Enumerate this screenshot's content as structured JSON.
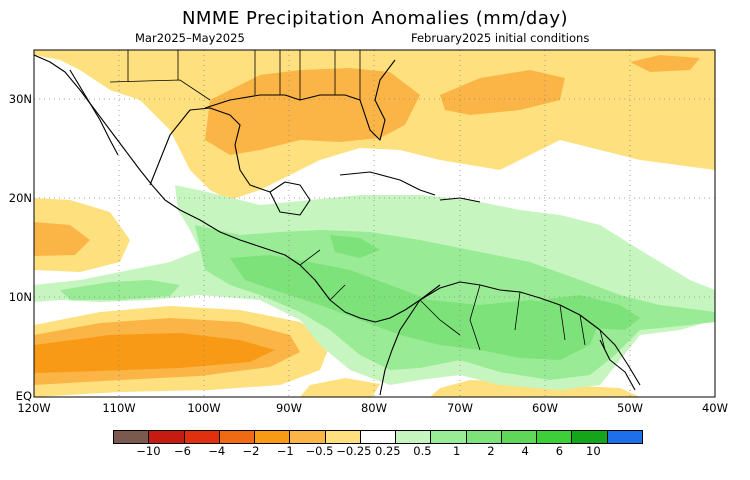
{
  "title": "NMME Precipitation Anomalies (mm/day)",
  "period": "Mar2025–May2025",
  "init": "February2025 initial conditions",
  "lat_labels": [
    "30N",
    "20N",
    "10N",
    "EQ"
  ],
  "lon_labels": [
    "120W",
    "110W",
    "100W",
    "90W",
    "80W",
    "70W",
    "60W",
    "50W",
    "40W"
  ],
  "legend": {
    "colors": [
      "#7a5a4e",
      "#c51b10",
      "#e0300e",
      "#f06a14",
      "#f99a17",
      "#fbb546",
      "#fee17e",
      "#ffffff",
      "#c6f5c0",
      "#9aeb95",
      "#7ee27a",
      "#5fd859",
      "#3ccf37",
      "#15a51a",
      "#1e6fea"
    ],
    "ticks": [
      "−10",
      "−6",
      "−4",
      "−2",
      "−1",
      "−0.5",
      "−0.25",
      "0.25",
      "0.5",
      "1",
      "2",
      "4",
      "6",
      "10"
    ]
  },
  "colors": {
    "light_yellow": "#fee17e",
    "light_orange": "#fbb546",
    "orange": "#f99a17",
    "pale_green": "#c6f5c0",
    "light_green": "#9aeb95",
    "green": "#7ee27a"
  }
}
